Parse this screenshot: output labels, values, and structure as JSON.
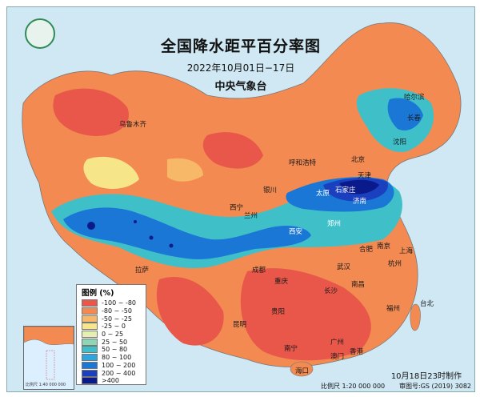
{
  "map": {
    "title": "全国降水距平百分率图",
    "date_range": "2022年10月01日−17日",
    "agency": "中央气象台",
    "issued": "10月18日23时制作",
    "scale": "比例尺 1:20 000 000",
    "map_number": "审图号:GS (2019) 3082号"
  },
  "legend": {
    "title": "图例 (%)",
    "items": [
      {
        "label": "-100 ~ -80",
        "color": "#e8574a"
      },
      {
        "label": "-80 ~ -50",
        "color": "#f28a52"
      },
      {
        "label": "-50 ~ -25",
        "color": "#f7b968"
      },
      {
        "label": "-25 ~ 0",
        "color": "#f7e58a"
      },
      {
        "label": "0 ~ 25",
        "color": "#e3f0b0"
      },
      {
        "label": "25 ~ 50",
        "color": "#8fd6b5"
      },
      {
        "label": "50 ~ 80",
        "color": "#3fc0c9"
      },
      {
        "label": "80 ~ 100",
        "color": "#2fa4dd"
      },
      {
        "label": "100 ~ 200",
        "color": "#1a77d6"
      },
      {
        "label": "200 ~ 400",
        "color": "#1a3fbf"
      },
      {
        "label": ">400",
        "color": "#0b1a8a"
      }
    ]
  },
  "cities": [
    {
      "name": "乌鲁木齐"
    },
    {
      "name": "哈尔滨"
    },
    {
      "name": "长春"
    },
    {
      "name": "沈阳"
    },
    {
      "name": "呼和浩特"
    },
    {
      "name": "北京"
    },
    {
      "name": "天津"
    },
    {
      "name": "石家庄"
    },
    {
      "name": "太原"
    },
    {
      "name": "济南"
    },
    {
      "name": "银川"
    },
    {
      "name": "西宁"
    },
    {
      "name": "兰州"
    },
    {
      "name": "西安"
    },
    {
      "name": "郑州"
    },
    {
      "name": "合肥"
    },
    {
      "name": "南京"
    },
    {
      "name": "上海"
    },
    {
      "name": "杭州"
    },
    {
      "name": "武汉"
    },
    {
      "name": "成都"
    },
    {
      "name": "重庆"
    },
    {
      "name": "拉萨"
    },
    {
      "name": "长沙"
    },
    {
      "name": "南昌"
    },
    {
      "name": "福州"
    },
    {
      "name": "台北"
    },
    {
      "name": "贵阳"
    },
    {
      "name": "昆明"
    },
    {
      "name": "南宁"
    },
    {
      "name": "广州"
    },
    {
      "name": "澳门"
    },
    {
      "name": "香港"
    },
    {
      "name": "海口"
    }
  ],
  "inset": {
    "caption": "比例尺 1:40 000 000"
  }
}
